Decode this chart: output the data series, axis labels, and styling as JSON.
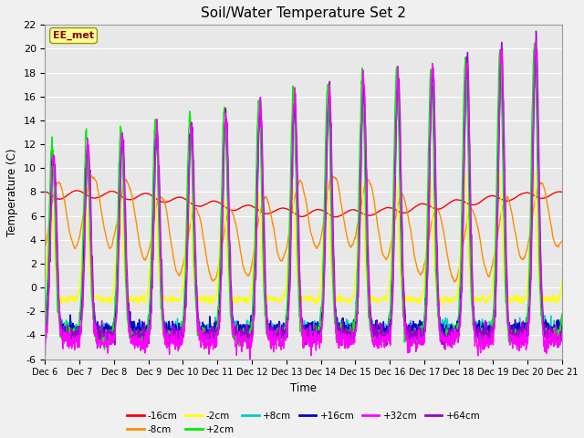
{
  "title": "Soil/Water Temperature Set 2",
  "xlabel": "Time",
  "ylabel": "Temperature (C)",
  "ylim": [
    -6,
    22
  ],
  "xlim": [
    0,
    15
  ],
  "x_tick_labels": [
    "Dec 6",
    "Dec 7",
    "Dec 8",
    "Dec 9",
    "Dec 10",
    "Dec 11",
    "Dec 12",
    "Dec 13",
    "Dec 14",
    "Dec 15",
    "Dec 16",
    "Dec 17",
    "Dec 18",
    "Dec 19",
    "Dec 20",
    "Dec 21"
  ],
  "annotation_text": "EE_met",
  "annotation_color": "#8B0000",
  "annotation_bg": "#FFFF99",
  "plot_bg_color": "#E8E8E8",
  "fig_bg_color": "#F0F0F0",
  "series_colors": {
    "-16cm": "#FF0000",
    "-8cm": "#FF8C00",
    "-2cm": "#FFFF00",
    "+2cm": "#00EE00",
    "+8cm": "#00CCCC",
    "+16cm": "#0000CC",
    "+32cm": "#FF00FF",
    "+64cm": "#9900CC"
  },
  "series_order": [
    "-16cm",
    "-8cm",
    "-2cm",
    "+2cm",
    "+8cm",
    "+16cm",
    "+32cm",
    "+64cm"
  ],
  "linewidth": 1.0,
  "figsize": [
    6.4,
    4.8
  ],
  "dpi": 100
}
